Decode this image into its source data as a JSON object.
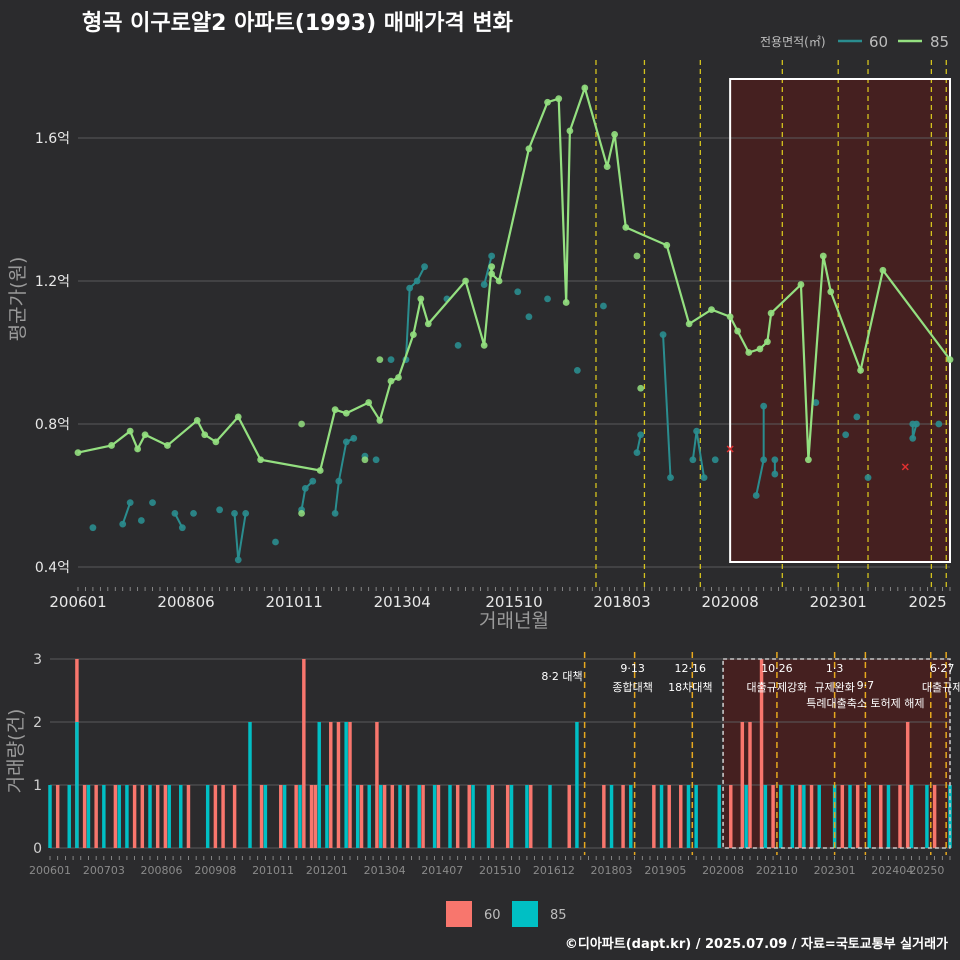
{
  "title": "형곡 이구로얄2 아파트(1993) 매매가격 변화",
  "footer": "©디아파트(dapt.kr) / 2025.07.09 / 자료=국토교통부 실거래가",
  "legend": {
    "title": "전용면적(㎡)",
    "items": [
      "60",
      "85"
    ]
  },
  "bottom_legend": [
    "60",
    "85"
  ],
  "colors": {
    "s60_line": "#2a8d8f",
    "s85_line": "#94e080",
    "s60_bar": "#f8766d",
    "s85_bar": "#00bfc4",
    "policy": "#d4c31e",
    "policy_bottom": "#e6a81f",
    "highlight_fill": "#4a1f1f",
    "cancel_mark": "#e03030"
  },
  "chart_data": [
    {
      "type": "line",
      "ylabel": "평균가(원)",
      "xlabel": "거래년월",
      "x_ticks": [
        "200601",
        "200806",
        "201011",
        "201304",
        "201510",
        "201803",
        "202008",
        "202301",
        "2025"
      ],
      "y_ticks": [
        {
          "value": 0.4,
          "label": "0.4억"
        },
        {
          "value": 0.8,
          "label": "0.8억"
        },
        {
          "value": 1.2,
          "label": "1.2억"
        },
        {
          "value": 1.6,
          "label": "1.6억"
        }
      ],
      "ylim": [
        0.37,
        1.8
      ],
      "x_range": [
        "2006-01",
        "2025-07"
      ],
      "highlight_range": [
        "2020-08",
        "2025-07"
      ],
      "policy_lines": [
        "2017-08",
        "2018-09",
        "2019-12",
        "2021-10",
        "2023-01",
        "2023-09",
        "2025-02",
        "2025-06"
      ],
      "series": [
        {
          "name": "60",
          "points": [
            [
              "2006-05",
              0.51
            ],
            [
              "2007-01",
              0.52
            ],
            [
              "2007-03",
              0.58
            ],
            [
              "2007-06",
              0.53
            ],
            [
              "2007-09",
              0.58
            ],
            [
              "2008-03",
              0.55
            ],
            [
              "2008-05",
              0.51
            ],
            [
              "2008-08",
              0.55
            ],
            [
              "2009-03",
              0.56
            ],
            [
              "2009-07",
              0.55
            ],
            [
              "2009-08",
              0.42
            ],
            [
              "2009-10",
              0.55
            ],
            [
              "2010-06",
              0.47
            ],
            [
              "2011-01",
              0.56
            ],
            [
              "2011-02",
              0.62
            ],
            [
              "2011-04",
              0.64
            ],
            [
              "2011-10",
              0.55
            ],
            [
              "2011-11",
              0.64
            ],
            [
              "2012-01",
              0.75
            ],
            [
              "2012-03",
              0.76
            ],
            [
              "2012-06",
              0.71
            ],
            [
              "2012-09",
              0.7
            ],
            [
              "2013-01",
              0.98
            ],
            [
              "2013-05",
              0.98
            ],
            [
              "2013-06",
              1.18
            ],
            [
              "2013-08",
              1.2
            ],
            [
              "2013-10",
              1.24
            ],
            [
              "2014-04",
              1.15
            ],
            [
              "2014-07",
              1.02
            ],
            [
              "2015-02",
              1.19
            ],
            [
              "2015-04",
              1.27
            ],
            [
              "2015-11",
              1.17
            ],
            [
              "2016-02",
              1.1
            ],
            [
              "2016-07",
              1.15
            ],
            [
              "2017-03",
              0.95
            ],
            [
              "2017-10",
              1.13
            ],
            [
              "2018-07",
              0.72
            ],
            [
              "2018-08",
              0.77
            ],
            [
              "2019-02",
              1.05
            ],
            [
              "2019-04",
              0.65
            ],
            [
              "2019-10",
              0.7
            ],
            [
              "2019-11",
              0.78
            ],
            [
              "2020-01",
              0.65
            ],
            [
              "2020-04",
              0.7
            ],
            [
              "2021-03",
              0.6
            ],
            [
              "2021-05",
              0.7
            ],
            [
              "2021-05",
              0.85
            ],
            [
              "2021-08",
              0.66
            ],
            [
              "2021-08",
              0.7
            ],
            [
              "2022-07",
              0.86
            ],
            [
              "2023-03",
              0.77
            ],
            [
              "2023-06",
              0.82
            ],
            [
              "2023-09",
              0.65
            ],
            [
              "2024-09",
              0.8
            ],
            [
              "2024-09",
              0.76
            ],
            [
              "2024-10",
              0.8
            ],
            [
              "2025-04",
              0.8
            ]
          ]
        },
        {
          "name": "85",
          "points": [
            [
              "2006-01",
              0.72
            ],
            [
              "2006-10",
              0.74
            ],
            [
              "2007-03",
              0.78
            ],
            [
              "2007-05",
              0.73
            ],
            [
              "2007-07",
              0.77
            ],
            [
              "2008-01",
              0.74
            ],
            [
              "2008-09",
              0.81
            ],
            [
              "2008-11",
              0.77
            ],
            [
              "2009-02",
              0.75
            ],
            [
              "2009-08",
              0.82
            ],
            [
              "2010-02",
              0.7
            ],
            [
              "2011-06",
              0.67
            ],
            [
              "2011-10",
              0.84
            ],
            [
              "2012-01",
              0.83
            ],
            [
              "2012-07",
              0.86
            ],
            [
              "2012-10",
              0.81
            ],
            [
              "2013-01",
              0.92
            ],
            [
              "2013-03",
              0.93
            ],
            [
              "2013-07",
              1.05
            ],
            [
              "2013-09",
              1.15
            ],
            [
              "2013-11",
              1.08
            ],
            [
              "2014-09",
              1.2
            ],
            [
              "2015-02",
              1.02
            ],
            [
              "2015-04",
              1.24
            ],
            [
              "2015-04",
              1.22
            ],
            [
              "2015-06",
              1.2
            ],
            [
              "2016-02",
              1.57
            ],
            [
              "2016-07",
              1.7
            ],
            [
              "2016-10",
              1.71
            ],
            [
              "2016-12",
              1.14
            ],
            [
              "2017-01",
              1.62
            ],
            [
              "2017-05",
              1.74
            ],
            [
              "2017-11",
              1.52
            ],
            [
              "2018-01",
              1.61
            ],
            [
              "2018-04",
              1.35
            ],
            [
              "2019-03",
              1.3
            ],
            [
              "2019-09",
              1.08
            ],
            [
              "2020-03",
              1.12
            ],
            [
              "2020-08",
              1.1
            ],
            [
              "2020-10",
              1.06
            ],
            [
              "2021-01",
              1.0
            ],
            [
              "2021-04",
              1.01
            ],
            [
              "2021-06",
              1.03
            ],
            [
              "2021-07",
              1.11
            ],
            [
              "2022-03",
              1.19
            ],
            [
              "2022-05",
              0.7
            ],
            [
              "2022-09",
              1.27
            ],
            [
              "2022-11",
              1.17
            ],
            [
              "2023-07",
              0.95
            ],
            [
              "2024-01",
              1.23
            ],
            [
              "2025-07",
              0.98
            ]
          ]
        }
      ],
      "extra_points_85": [
        [
          "2011-01",
          0.8
        ],
        [
          "2011-01",
          0.55
        ],
        [
          "2012-06",
          0.7
        ],
        [
          "2012-10",
          0.98
        ],
        [
          "2018-07",
          1.27
        ],
        [
          "2018-08",
          0.9
        ]
      ],
      "cancelled_points": [
        [
          "2020-08",
          0.73
        ],
        [
          "2024-07",
          0.68
        ]
      ]
    },
    {
      "type": "bar",
      "ylabel": "거래량(건)",
      "x_ticks": [
        "200601",
        "200703",
        "200806",
        "200908",
        "201011",
        "201201",
        "201304",
        "201407",
        "201510",
        "201612",
        "201803",
        "201905",
        "202008",
        "202110",
        "202301",
        "202404",
        "20250"
      ],
      "y_ticks": [
        0,
        1,
        2,
        3
      ],
      "ylim": [
        0,
        3
      ],
      "highlight_range": [
        "2020-08",
        "2025-07"
      ],
      "policy_lines": [
        "2017-08",
        "2018-09",
        "2019-12",
        "2021-10",
        "2023-01",
        "2023-09",
        "2025-02",
        "2025-06"
      ],
      "policy_labels": [
        {
          "x": "2017-08",
          "lines": [
            "8·2 대책"
          ]
        },
        {
          "x": "2018-09",
          "lines": [
            "9·13",
            "종합대책"
          ]
        },
        {
          "x": "2019-12",
          "lines": [
            "12·16",
            "18차대책"
          ]
        },
        {
          "x": "2021-10",
          "lines": [
            "10·26",
            "대출규제강화"
          ]
        },
        {
          "x": "2023-01",
          "lines": [
            "1·3",
            "규제완화"
          ]
        },
        {
          "x": "2023-09",
          "lines": [
            "9·7",
            "특례대출축소 토허제 해제"
          ]
        },
        {
          "x": "2025-06",
          "lines": [
            "6·27",
            "대출규제"
          ]
        }
      ],
      "series": [
        {
          "name": "60",
          "counts": {
            "2006-03": 1,
            "2006-08": 3,
            "2006-10": 1,
            "2007-01": 1,
            "2007-06": 1,
            "2007-11": 1,
            "2008-01": 1,
            "2008-05": 1,
            "2008-07": 1,
            "2009-01": 1,
            "2009-08": 1,
            "2009-10": 1,
            "2010-01": 1,
            "2010-08": 1,
            "2011-01": 1,
            "2011-05": 1,
            "2011-07": 3,
            "2011-09": 1,
            "2011-10": 1,
            "2012-02": 2,
            "2012-04": 2,
            "2012-07": 2,
            "2012-10": 1,
            "2013-02": 2,
            "2013-04": 1,
            "2013-06": 1,
            "2013-10": 1,
            "2014-02": 1,
            "2014-06": 1,
            "2014-11": 1,
            "2015-02": 1,
            "2015-08": 1,
            "2015-12": 1,
            "2016-06": 1,
            "2017-04": 1,
            "2018-01": 1,
            "2018-06": 1,
            "2019-02": 1,
            "2019-06": 1,
            "2019-09": 1,
            "2020-10": 1,
            "2021-01": 2,
            "2021-03": 2,
            "2021-06": 3,
            "2021-09": 1,
            "2022-04": 1,
            "2022-07": 1,
            "2023-03": 1,
            "2023-07": 1,
            "2024-01": 1,
            "2024-06": 1,
            "2024-08": 2,
            "2025-03": 1
          }
        },
        {
          "name": "85",
          "counts": {
            "2006-01": 1,
            "2006-06": 1,
            "2006-08": 2,
            "2006-11": 1,
            "2007-03": 1,
            "2007-07": 1,
            "2007-09": 1,
            "2008-03": 1,
            "2008-08": 1,
            "2008-11": 1,
            "2009-06": 1,
            "2010-05": 2,
            "2010-09": 1,
            "2011-02": 1,
            "2011-06": 1,
            "2011-11": 2,
            "2012-01": 1,
            "2012-06": 2,
            "2012-09": 1,
            "2012-12": 1,
            "2013-03": 1,
            "2013-08": 1,
            "2014-01": 1,
            "2014-05": 1,
            "2014-09": 1,
            "2015-03": 1,
            "2015-07": 1,
            "2016-01": 1,
            "2016-05": 1,
            "2016-11": 1,
            "2017-06": 2,
            "2018-03": 1,
            "2018-08": 1,
            "2019-04": 1,
            "2019-11": 1,
            "2020-01": 1,
            "2020-07": 1,
            "2021-02": 1,
            "2021-07": 1,
            "2021-11": 1,
            "2022-02": 1,
            "2022-05": 1,
            "2022-09": 1,
            "2023-01": 1,
            "2023-05": 1,
            "2023-10": 1,
            "2024-03": 1,
            "2024-09": 1,
            "2025-01": 1,
            "2025-07": 1
          }
        }
      ]
    }
  ]
}
